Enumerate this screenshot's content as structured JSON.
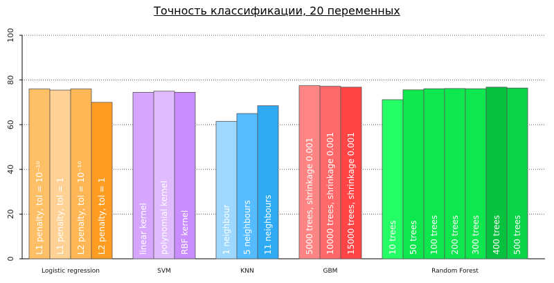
{
  "chart_data": {
    "type": "bar",
    "title": "Точность классификации, 20 переменных",
    "xlabel": "",
    "ylabel": "",
    "ylim": [
      0,
      100
    ],
    "yticks": [
      0,
      20,
      40,
      60,
      80,
      100
    ],
    "grid": true,
    "groups": [
      {
        "name": "Logistic regression",
        "bars": [
          {
            "label": "L1 penalty, tol = 10⁻¹⁰",
            "value": 76,
            "color": "#ffbf66"
          },
          {
            "label": "L1 penalty, tol = 1",
            "value": 75.5,
            "color": "#ffd194"
          },
          {
            "label": "L2 penalty, tol = 10⁻¹⁰",
            "value": 76,
            "color": "#ffb655"
          },
          {
            "label": "L2 penalty, tol = 1",
            "value": 70,
            "color": "#ff9d22"
          }
        ]
      },
      {
        "name": "SVM",
        "bars": [
          {
            "label": "linear kernel",
            "value": 74.5,
            "color": "#d6a6ff"
          },
          {
            "label": "polynomial kernel",
            "value": 75,
            "color": "#e0bcff"
          },
          {
            "label": "RBF kernel",
            "value": 74.5,
            "color": "#c98dff"
          }
        ]
      },
      {
        "name": "KNN",
        "bars": [
          {
            "label": "1 neighbour",
            "value": 61.5,
            "color": "#9fd8ff"
          },
          {
            "label": "5 neighbours",
            "value": 65,
            "color": "#55bcff"
          },
          {
            "label": "11 neighbours",
            "value": 68.5,
            "color": "#2eaaf5"
          }
        ]
      },
      {
        "name": "GBM",
        "bars": [
          {
            "label": "5000 trees, shrinkage 0.001",
            "value": 77.5,
            "color": "#ff8585"
          },
          {
            "label": "10000 trees, shrinkage 0.001",
            "value": 77.2,
            "color": "#ff6868"
          },
          {
            "label": "15000 trees, shrinkage 0.001",
            "value": 76.8,
            "color": "#ff4545"
          }
        ]
      },
      {
        "name": "Random Forest",
        "bars": [
          {
            "label": "10 trees",
            "value": 71.2,
            "color": "#25ff66"
          },
          {
            "label": "50 trees",
            "value": 75.6,
            "color": "#0ee84e"
          },
          {
            "label": "100 trees",
            "value": 76.1,
            "color": "#0ee84e"
          },
          {
            "label": "200 trees",
            "value": 76.2,
            "color": "#0ee84e"
          },
          {
            "label": "300 trees",
            "value": 76.1,
            "color": "#0ee84e"
          },
          {
            "label": "400 trees",
            "value": 76.8,
            "color": "#07c23e"
          },
          {
            "label": "500 trees",
            "value": 76.4,
            "color": "#0ad447"
          }
        ]
      }
    ]
  }
}
